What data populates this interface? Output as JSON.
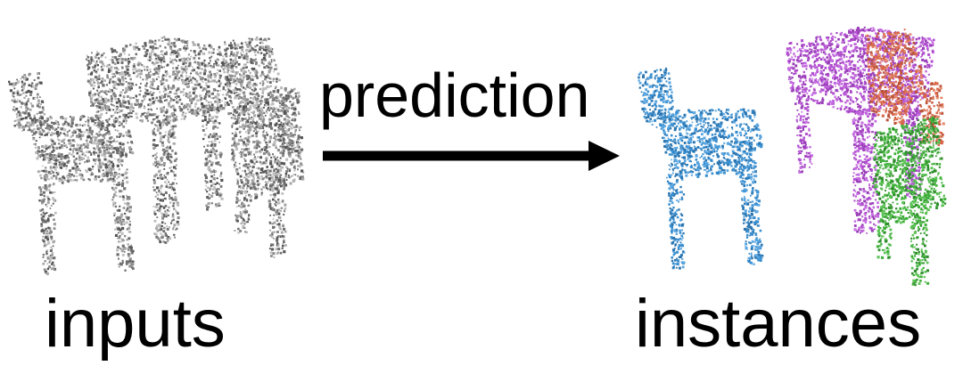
{
  "labels": {
    "input": "inputs",
    "arrow": "prediction",
    "output": "instances"
  },
  "colors": {
    "input_points": [
      "#8a8a8a",
      "#a5a5a5",
      "#6e6e6e",
      "#bdbdbd",
      "#555555"
    ],
    "instance_blue": "#3a8fd0",
    "instance_magenta": "#b24fd0",
    "instance_orange": "#d9674a",
    "instance_green": "#3fb03a",
    "arrow": "#000000",
    "text": "#000000"
  }
}
